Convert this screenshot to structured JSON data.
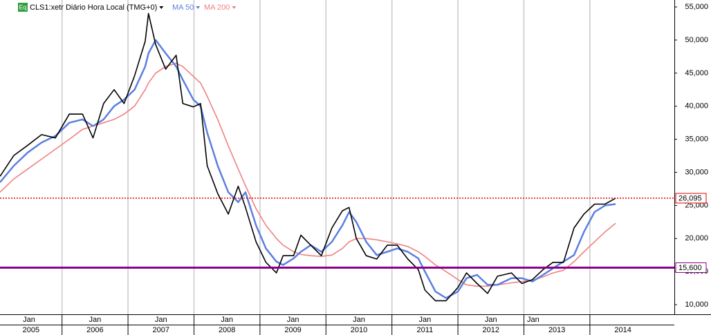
{
  "chart_data": {
    "type": "line",
    "icon": "Eq",
    "xlim": [
      2005.06,
      2015.28
    ],
    "ylim": [
      8550,
      56050
    ],
    "xticks": [
      2006,
      2007,
      2008,
      2009,
      2010,
      2011,
      2012,
      2013,
      2014
    ],
    "years": [
      2005,
      2006,
      2007,
      2008,
      2009,
      2010,
      2011,
      2012,
      2013,
      2014
    ],
    "top_ticks": [
      {
        "value": 2005.5,
        "label": "Jan"
      },
      {
        "value": 2006.5,
        "label": "Jan"
      },
      {
        "value": 2007.5,
        "label": "Jan"
      },
      {
        "value": 2008.5,
        "label": "Jan"
      },
      {
        "value": 2009.5,
        "label": "Jan"
      },
      {
        "value": 2010.5,
        "label": "Jan"
      },
      {
        "value": 2011.5,
        "label": "Jan"
      },
      {
        "value": 2012.5,
        "label": "Jan"
      },
      {
        "value": 2013.14,
        "label": "Jan"
      }
    ],
    "yticks": [
      {
        "value": 10000,
        "label": "10,000"
      },
      {
        "value": 15000,
        "label": "15,000"
      },
      {
        "value": 20000,
        "label": "20,000"
      },
      {
        "value": 25000,
        "label": "25,000"
      },
      {
        "value": 30000,
        "label": "30,000"
      },
      {
        "value": 35000,
        "label": "35,000"
      },
      {
        "value": 40000,
        "label": "40,000"
      },
      {
        "value": 45000,
        "label": "45,000"
      },
      {
        "value": 50000,
        "label": "50,000"
      },
      {
        "value": 55000,
        "label": "55,000"
      }
    ],
    "grid": true,
    "levels": [
      {
        "value": 26095,
        "label": "26,095",
        "color": "#e00000",
        "style": "dotted"
      },
      {
        "value": 15600,
        "label": "15,600",
        "color": "#8b008b",
        "style": "solid"
      }
    ],
    "x": [
      2005.06,
      2005.27,
      2005.48,
      2005.69,
      2005.9,
      2006.11,
      2006.31,
      2006.47,
      2006.63,
      2006.79,
      2006.94,
      2007.1,
      2007.26,
      2007.31,
      2007.42,
      2007.57,
      2007.73,
      2007.83,
      2007.99,
      2008.1,
      2008.2,
      2008.36,
      2008.52,
      2008.67,
      2008.78,
      2008.94,
      2009.09,
      2009.25,
      2009.35,
      2009.51,
      2009.62,
      2009.77,
      2009.93,
      2010.09,
      2010.25,
      2010.35,
      2010.46,
      2010.61,
      2010.77,
      2010.93,
      2011.08,
      2011.24,
      2011.4,
      2011.5,
      2011.66,
      2011.82,
      2012.0,
      2012.13,
      2012.29,
      2012.45,
      2012.6,
      2012.81,
      2012.97,
      2013.13,
      2013.29,
      2013.44,
      2013.6,
      2013.76,
      2013.91,
      2014.07,
      2014.23,
      2014.39
    ],
    "series": [
      {
        "name": "CLS1:xetr Diário Hora Local (TMG+0)",
        "color": "#000000",
        "width": 1.6,
        "values": [
          29400,
          32550,
          34100,
          35700,
          35200,
          38800,
          38800,
          35200,
          40400,
          42500,
          40400,
          44600,
          49800,
          54000,
          49300,
          45600,
          47700,
          40400,
          39900,
          40400,
          31000,
          26800,
          23700,
          27900,
          24700,
          19500,
          16400,
          14800,
          17400,
          17400,
          20500,
          19000,
          17400,
          21600,
          24200,
          24700,
          20000,
          17400,
          16900,
          19000,
          19000,
          16900,
          15300,
          12200,
          10600,
          10600,
          12600,
          14800,
          13200,
          11700,
          14300,
          14800,
          13200,
          13800,
          15300,
          16400,
          16400,
          21600,
          23700,
          25200,
          25200,
          26095
        ]
      },
      {
        "name": "MA 50",
        "color": "#5b7fe0",
        "width": 2.5,
        "values": [
          28500,
          31000,
          33000,
          34500,
          35500,
          37500,
          38000,
          37000,
          38000,
          40000,
          41000,
          42500,
          46000,
          48000,
          50000,
          48000,
          46000,
          44000,
          41000,
          40000,
          36000,
          31000,
          27000,
          25500,
          27000,
          22000,
          18500,
          16500,
          16000,
          17000,
          18000,
          19000,
          18000,
          19500,
          22000,
          24000,
          22500,
          19500,
          17500,
          18000,
          18500,
          18000,
          17000,
          15000,
          12000,
          11000,
          12000,
          14000,
          14500,
          13000,
          13000,
          14000,
          14000,
          13500,
          14500,
          15500,
          16500,
          17500,
          21000,
          24000,
          25000,
          25200
        ]
      },
      {
        "name": "MA 200",
        "color": "#f08080",
        "width": 1.6,
        "values": [
          27000,
          29000,
          30500,
          32000,
          33500,
          35000,
          36500,
          37000,
          37500,
          38000,
          38800,
          40000,
          42500,
          43500,
          45000,
          46000,
          46500,
          46000,
          44500,
          43500,
          41500,
          38000,
          34000,
          30500,
          28000,
          24500,
          22000,
          20000,
          19000,
          18000,
          17600,
          17400,
          17300,
          17500,
          18500,
          19500,
          20000,
          20000,
          19800,
          19500,
          19200,
          18800,
          18000,
          17300,
          16000,
          15000,
          13800,
          13000,
          12800,
          12800,
          13000,
          13300,
          13500,
          13700,
          14200,
          14800,
          15200,
          16500,
          18000,
          19500,
          21000,
          22300
        ]
      }
    ]
  }
}
